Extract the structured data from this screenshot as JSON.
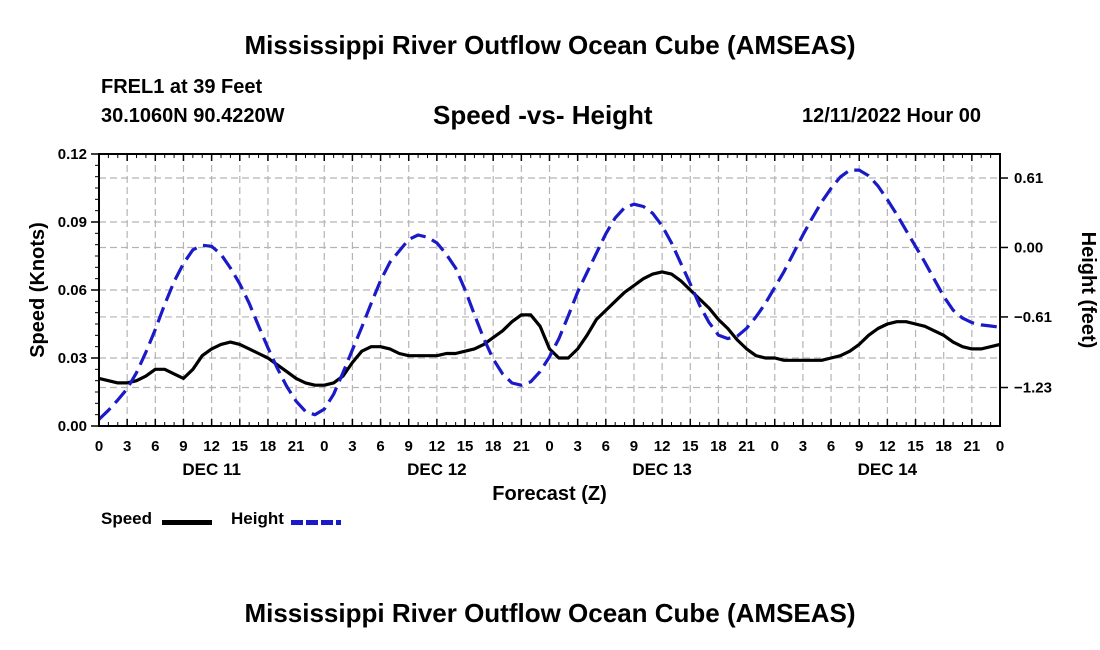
{
  "header": {
    "main_title": "Mississippi River Outflow Ocean Cube (AMSEAS)",
    "station_name": "FREL1 at 39 Feet",
    "station_coords": "30.1060N  90.4220W",
    "chart_title": "Speed -vs- Height",
    "run_date": "12/11/2022 Hour 00"
  },
  "footer": {
    "title": "Mississippi River Outflow Ocean Cube (AMSEAS)"
  },
  "legend": {
    "speed_label": "Speed",
    "height_label": "Height"
  },
  "colors": {
    "speed": "#000000",
    "height": "#1a1ac8",
    "grid": "#b4b4b4"
  },
  "chart_data": {
    "type": "line",
    "title": "Speed -vs- Height",
    "xlabel": "Forecast (Z)",
    "ylabel": "Speed (Knots)",
    "y2label": "Height (feet)",
    "xlim": [
      0,
      96
    ],
    "ylim": [
      0,
      0.12
    ],
    "y2lim": [
      -1.568,
      0.821
    ],
    "x_ticks": [
      0,
      3,
      6,
      9,
      12,
      15,
      18,
      21,
      24,
      27,
      30,
      33,
      36,
      39,
      42,
      45,
      48,
      51,
      54,
      57,
      60,
      63,
      66,
      69,
      72,
      75,
      78,
      81,
      84,
      87,
      90,
      93,
      96
    ],
    "x_tick_labels": [
      "0",
      "3",
      "6",
      "9",
      "12",
      "15",
      "18",
      "21",
      "0",
      "3",
      "6",
      "9",
      "12",
      "15",
      "18",
      "21",
      "0",
      "3",
      "6",
      "9",
      "12",
      "15",
      "18",
      "21",
      "0",
      "3",
      "6",
      "9",
      "12",
      "15",
      "18",
      "21",
      "0"
    ],
    "day_labels": [
      {
        "x": 12,
        "label": "DEC 11"
      },
      {
        "x": 36,
        "label": "DEC 12"
      },
      {
        "x": 60,
        "label": "DEC 13"
      },
      {
        "x": 84,
        "label": "DEC 14"
      }
    ],
    "y_ticks": [
      0,
      0.03,
      0.06,
      0.09,
      0.12
    ],
    "y_tick_labels": [
      "0.00",
      "0.03",
      "0.06",
      "0.09",
      "0.12"
    ],
    "y2_ticks": [
      -1.23,
      -0.61,
      0.0,
      0.61
    ],
    "y2_tick_labels": [
      "−1.23",
      "−0.61",
      "0.00",
      "0.61"
    ],
    "grid": true,
    "series": [
      {
        "name": "Speed",
        "axis": "left",
        "style": "solid",
        "x": [
          0,
          1,
          2,
          3,
          4,
          5,
          6,
          7,
          8,
          9,
          10,
          11,
          12,
          13,
          14,
          15,
          16,
          17,
          18,
          19,
          20,
          21,
          22,
          23,
          24,
          25,
          26,
          27,
          28,
          29,
          30,
          31,
          32,
          33,
          34,
          35,
          36,
          37,
          38,
          39,
          40,
          41,
          42,
          43,
          44,
          45,
          46,
          47,
          48,
          49,
          50,
          51,
          52,
          53,
          54,
          55,
          56,
          57,
          58,
          59,
          60,
          61,
          62,
          63,
          64,
          65,
          66,
          67,
          68,
          69,
          70,
          71,
          72,
          73,
          74,
          75,
          76,
          77,
          78,
          79,
          80,
          81,
          82,
          83,
          84,
          85,
          86,
          87,
          88,
          89,
          90,
          91,
          92,
          93,
          94,
          95,
          96
        ],
        "values": [
          0.021,
          0.02,
          0.019,
          0.019,
          0.02,
          0.022,
          0.025,
          0.025,
          0.023,
          0.021,
          0.025,
          0.031,
          0.034,
          0.036,
          0.037,
          0.036,
          0.034,
          0.032,
          0.03,
          0.027,
          0.024,
          0.021,
          0.019,
          0.018,
          0.018,
          0.019,
          0.022,
          0.028,
          0.033,
          0.035,
          0.035,
          0.034,
          0.032,
          0.031,
          0.031,
          0.031,
          0.031,
          0.032,
          0.032,
          0.033,
          0.034,
          0.036,
          0.039,
          0.042,
          0.046,
          0.049,
          0.049,
          0.044,
          0.034,
          0.03,
          0.03,
          0.034,
          0.04,
          0.047,
          0.051,
          0.055,
          0.059,
          0.062,
          0.065,
          0.067,
          0.068,
          0.067,
          0.064,
          0.06,
          0.056,
          0.052,
          0.047,
          0.043,
          0.038,
          0.034,
          0.031,
          0.03,
          0.03,
          0.029,
          0.029,
          0.029,
          0.029,
          0.029,
          0.03,
          0.031,
          0.033,
          0.036,
          0.04,
          0.043,
          0.045,
          0.046,
          0.046,
          0.045,
          0.044,
          0.042,
          0.04,
          0.037,
          0.035,
          0.034,
          0.034,
          0.035,
          0.036
        ]
      },
      {
        "name": "Height",
        "axis": "right",
        "style": "dashed",
        "x": [
          0,
          1,
          2,
          3,
          4,
          5,
          6,
          7,
          8,
          9,
          10,
          11,
          12,
          13,
          14,
          15,
          16,
          17,
          18,
          19,
          20,
          21,
          22,
          23,
          24,
          25,
          26,
          27,
          28,
          29,
          30,
          31,
          32,
          33,
          34,
          35,
          36,
          37,
          38,
          39,
          40,
          41,
          42,
          43,
          44,
          45,
          46,
          47,
          48,
          49,
          50,
          51,
          52,
          53,
          54,
          55,
          56,
          57,
          58,
          59,
          60,
          61,
          62,
          63,
          64,
          65,
          66,
          67,
          68,
          69,
          70,
          71,
          72,
          73,
          74,
          75,
          76,
          77,
          78,
          79,
          80,
          81,
          82,
          83,
          84,
          85,
          86,
          87,
          88,
          89,
          90,
          91,
          92,
          93,
          94,
          95,
          96
        ],
        "values": [
          -1.51,
          -1.43,
          -1.34,
          -1.24,
          -1.1,
          -0.92,
          -0.72,
          -0.5,
          -0.3,
          -0.14,
          -0.02,
          0.02,
          0.01,
          -0.06,
          -0.18,
          -0.32,
          -0.49,
          -0.69,
          -0.88,
          -1.06,
          -1.22,
          -1.35,
          -1.44,
          -1.47,
          -1.42,
          -1.29,
          -1.1,
          -0.9,
          -0.7,
          -0.49,
          -0.29,
          -0.13,
          -0.03,
          0.07,
          0.11,
          0.09,
          0.04,
          -0.06,
          -0.18,
          -0.37,
          -0.59,
          -0.8,
          -0.98,
          -1.11,
          -1.19,
          -1.21,
          -1.18,
          -1.09,
          -0.96,
          -0.8,
          -0.6,
          -0.39,
          -0.22,
          -0.05,
          0.12,
          0.26,
          0.35,
          0.38,
          0.36,
          0.3,
          0.19,
          0.04,
          -0.14,
          -0.32,
          -0.51,
          -0.66,
          -0.77,
          -0.8,
          -0.78,
          -0.71,
          -0.61,
          -0.49,
          -0.35,
          -0.21,
          -0.05,
          0.11,
          0.26,
          0.4,
          0.52,
          0.62,
          0.68,
          0.68,
          0.63,
          0.54,
          0.42,
          0.29,
          0.15,
          0.01,
          -0.13,
          -0.28,
          -0.43,
          -0.55,
          -0.62,
          -0.66,
          -0.68,
          -0.69,
          -0.7
        ]
      }
    ]
  }
}
